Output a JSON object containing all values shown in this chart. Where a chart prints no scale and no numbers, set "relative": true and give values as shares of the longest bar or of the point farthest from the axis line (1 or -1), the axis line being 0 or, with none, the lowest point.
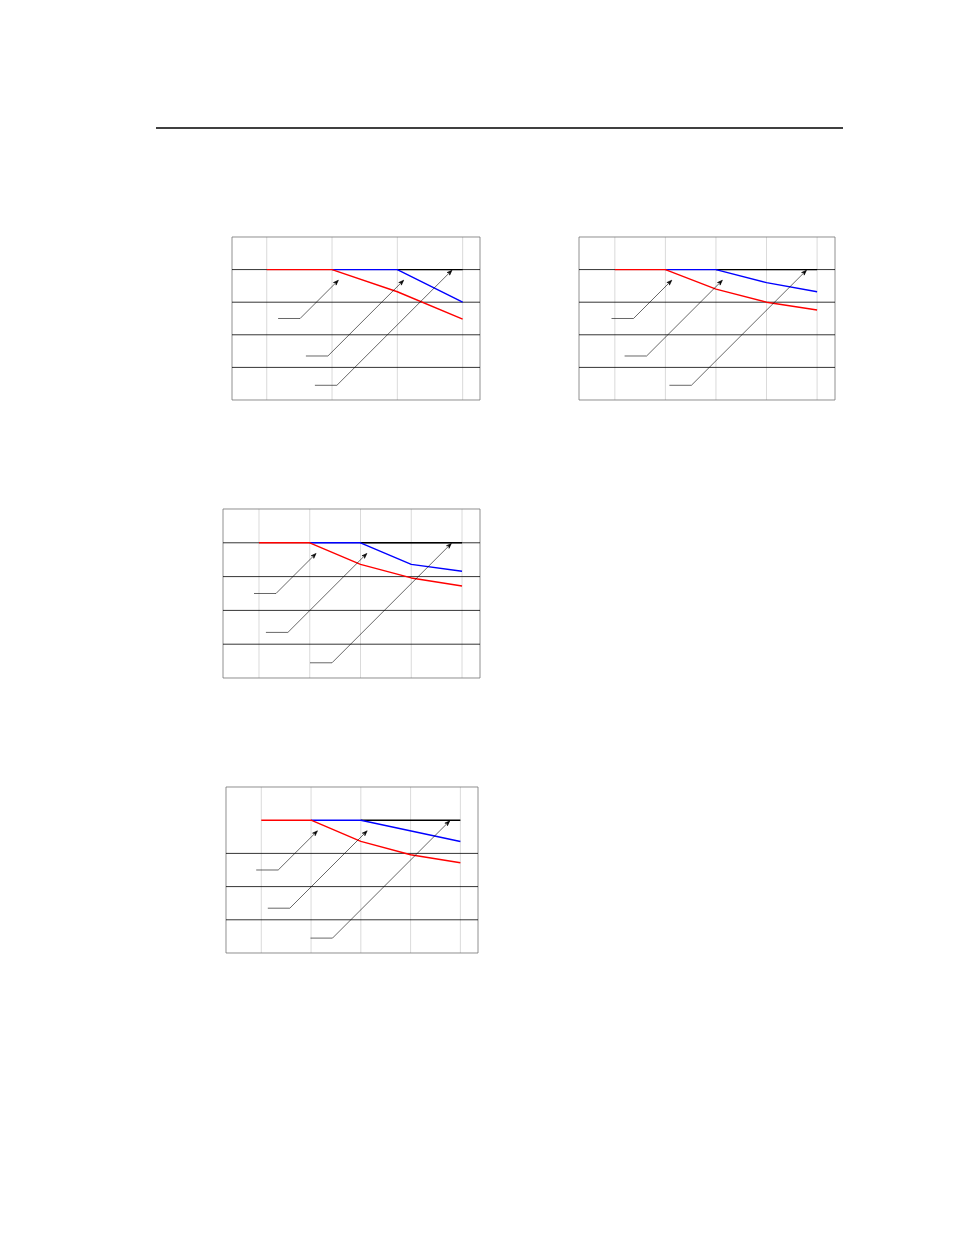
{
  "chart_data": [
    {
      "type": "line",
      "relative": true,
      "categories": [
        null,
        null,
        null,
        null
      ],
      "grid": "x",
      "ref_lines": [
        {
          "axis": "y",
          "value": 1,
          "color": "#000000"
        },
        {
          "axis": "y",
          "value": 0.75,
          "color": "#000000"
        },
        {
          "axis": "y",
          "value": 0.5,
          "color": "#000000"
        },
        {
          "axis": "y",
          "value": 0.25,
          "color": "#000000"
        }
      ],
      "series": [
        {
          "color": "#000000",
          "values": [
            null,
            null,
            1,
            1
          ]
        },
        {
          "color": "#0000ff",
          "values": [
            null,
            1,
            1,
            0.75
          ]
        },
        {
          "color": "#ff0000",
          "values": [
            1,
            1,
            0.83,
            0.62
          ]
        }
      ]
    },
    {
      "type": "line",
      "relative": true,
      "categories": [
        null,
        null,
        null,
        null,
        null
      ],
      "grid": "x",
      "ref_lines": [
        {
          "axis": "y",
          "value": 1,
          "color": "#000000"
        },
        {
          "axis": "y",
          "value": 0.75,
          "color": "#000000"
        },
        {
          "axis": "y",
          "value": 0.5,
          "color": "#000000"
        },
        {
          "axis": "y",
          "value": 0.25,
          "color": "#000000"
        }
      ],
      "series": [
        {
          "color": "#000000",
          "values": [
            null,
            null,
            1,
            1,
            1
          ]
        },
        {
          "color": "#0000ff",
          "values": [
            null,
            1,
            1,
            0.9,
            0.83
          ]
        },
        {
          "color": "#ff0000",
          "values": [
            1,
            1,
            0.85,
            0.75,
            0.69
          ]
        }
      ]
    },
    {
      "type": "line",
      "relative": true,
      "categories": [
        null,
        null,
        null,
        null,
        null
      ],
      "grid": "x",
      "ref_lines": [
        {
          "axis": "y",
          "value": 1,
          "color": "#000000"
        },
        {
          "axis": "y",
          "value": 0.75,
          "color": "#000000"
        },
        {
          "axis": "y",
          "value": 0.5,
          "color": "#000000"
        },
        {
          "axis": "y",
          "value": 0.25,
          "color": "#000000"
        }
      ],
      "series": [
        {
          "color": "#000000",
          "values": [
            null,
            null,
            1,
            1,
            1
          ]
        },
        {
          "color": "#0000ff",
          "values": [
            null,
            1,
            1,
            0.84,
            0.79
          ]
        },
        {
          "color": "#ff0000",
          "values": [
            1,
            1,
            0.84,
            0.74,
            0.68
          ]
        }
      ]
    },
    {
      "type": "line",
      "relative": true,
      "categories": [
        null,
        null,
        null,
        null,
        null
      ],
      "grid": "x",
      "ref_lines": [
        {
          "axis": "y",
          "value": 0.75,
          "color": "#000000"
        },
        {
          "axis": "y",
          "value": 0.5,
          "color": "#000000"
        },
        {
          "axis": "y",
          "value": 0.25,
          "color": "#000000"
        }
      ],
      "series": [
        {
          "color": "#000000",
          "values": [
            null,
            null,
            1,
            1,
            1
          ]
        },
        {
          "color": "#0000ff",
          "values": [
            null,
            1,
            1,
            0.92,
            0.84
          ]
        },
        {
          "color": "#ff0000",
          "values": [
            1,
            1,
            0.84,
            0.74,
            0.68
          ]
        }
      ]
    }
  ]
}
